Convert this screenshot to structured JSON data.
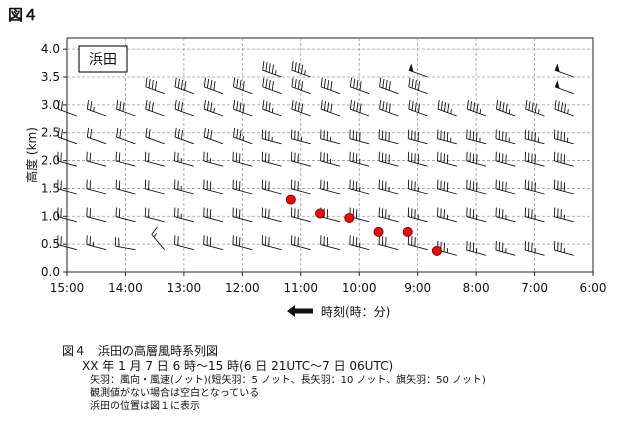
{
  "figure_label": "図４",
  "station_label": "浜田",
  "caption": {
    "line1": "図４　浜田の高層風時系列図",
    "line2": "XX 年 1 月 7 日 6 時〜15 時(6 日 21UTC〜7 日 06UTC)",
    "line3": "矢羽：風向・風速(ノット)(短矢羽：5 ノット、長矢羽：10 ノット、旗矢羽：50 ノット)",
    "line4": "観測値がない場合は空白となっている",
    "line5": "浜田の位置は図１に表示"
  },
  "chart_data": {
    "type": "wind-barb time-height",
    "xlabel": "時刻(時：分)",
    "ylabel": "高度 (km)",
    "x_ticks": [
      "15:00",
      "14:00",
      "13:00",
      "12:00",
      "11:00",
      "10:00",
      "9:00",
      "8:00",
      "7:00",
      "6:00"
    ],
    "x_hours": [
      15,
      14,
      13,
      12,
      11,
      10,
      9,
      8,
      7,
      6
    ],
    "x_direction": "reversed (time increases to the left)",
    "ylim": [
      0,
      4.2
    ],
    "y_ticks": [
      0,
      0.5,
      1.0,
      1.5,
      2.0,
      2.5,
      3.0,
      3.5,
      4.0
    ],
    "grid": true,
    "colors": {
      "marker": "#e01010",
      "barb": "#111111",
      "grid": "#9a9a9a"
    },
    "markers": [
      {
        "time": "11:10",
        "x": 11.17,
        "y": 1.3
      },
      {
        "time": "10:40",
        "x": 10.67,
        "y": 1.05
      },
      {
        "time": "10:10",
        "x": 10.17,
        "y": 0.97
      },
      {
        "time": "9:40",
        "x": 9.67,
        "y": 0.72
      },
      {
        "time": "9:10",
        "x": 9.17,
        "y": 0.72
      },
      {
        "time": "8:40",
        "x": 8.67,
        "y": 0.38
      }
    ],
    "barb_columns": [
      {
        "x": 14.83,
        "levels": [
          [
            0.4,
            285,
            20
          ],
          [
            0.9,
            285,
            20
          ],
          [
            1.4,
            285,
            20
          ],
          [
            1.9,
            285,
            20
          ],
          [
            2.3,
            290,
            20
          ],
          [
            2.8,
            290,
            20
          ]
        ]
      },
      {
        "x": 14.33,
        "levels": [
          [
            0.4,
            285,
            25
          ],
          [
            0.9,
            285,
            20
          ],
          [
            1.4,
            285,
            20
          ],
          [
            1.9,
            285,
            20
          ],
          [
            2.3,
            290,
            20
          ],
          [
            2.8,
            290,
            25
          ]
        ]
      },
      {
        "x": 13.83,
        "levels": [
          [
            0.4,
            280,
            20
          ],
          [
            0.9,
            285,
            20
          ],
          [
            1.4,
            285,
            20
          ],
          [
            1.9,
            285,
            20
          ],
          [
            2.3,
            290,
            20
          ],
          [
            2.8,
            290,
            30
          ]
        ]
      },
      {
        "x": 13.33,
        "levels": [
          [
            0.4,
            320,
            15
          ],
          [
            0.9,
            285,
            20
          ],
          [
            1.4,
            285,
            20
          ],
          [
            1.9,
            285,
            20
          ],
          [
            2.3,
            290,
            20
          ],
          [
            2.8,
            290,
            30
          ],
          [
            3.2,
            290,
            40
          ]
        ]
      },
      {
        "x": 12.83,
        "levels": [
          [
            0.4,
            285,
            20
          ],
          [
            0.9,
            285,
            25
          ],
          [
            1.4,
            285,
            25
          ],
          [
            1.9,
            285,
            25
          ],
          [
            2.3,
            290,
            30
          ],
          [
            2.8,
            290,
            30
          ],
          [
            3.2,
            290,
            40
          ]
        ]
      },
      {
        "x": 12.33,
        "levels": [
          [
            0.4,
            285,
            30
          ],
          [
            0.9,
            285,
            30
          ],
          [
            1.4,
            285,
            30
          ],
          [
            1.9,
            285,
            25
          ],
          [
            2.3,
            290,
            30
          ],
          [
            2.8,
            290,
            35
          ],
          [
            3.2,
            290,
            40
          ]
        ]
      },
      {
        "x": 11.83,
        "levels": [
          [
            0.4,
            285,
            30
          ],
          [
            0.9,
            285,
            30
          ],
          [
            1.4,
            285,
            30
          ],
          [
            1.9,
            285,
            30
          ],
          [
            2.3,
            290,
            35
          ],
          [
            2.8,
            290,
            40
          ],
          [
            3.2,
            290,
            40
          ]
        ]
      },
      {
        "x": 11.33,
        "levels": [
          [
            0.4,
            285,
            30
          ],
          [
            0.9,
            285,
            30
          ],
          [
            1.4,
            285,
            30
          ],
          [
            1.9,
            285,
            30
          ],
          [
            2.3,
            285,
            35
          ],
          [
            2.8,
            290,
            35
          ],
          [
            3.2,
            290,
            40
          ],
          [
            3.5,
            290,
            45
          ]
        ]
      },
      {
        "x": 10.83,
        "levels": [
          [
            0.4,
            285,
            30
          ],
          [
            0.9,
            285,
            30
          ],
          [
            1.4,
            285,
            30
          ],
          [
            1.9,
            285,
            30
          ],
          [
            2.3,
            285,
            35
          ],
          [
            2.8,
            290,
            40
          ],
          [
            3.2,
            290,
            40
          ],
          [
            3.5,
            290,
            45
          ]
        ]
      },
      {
        "x": 10.33,
        "levels": [
          [
            0.4,
            285,
            30
          ],
          [
            0.9,
            285,
            30
          ],
          [
            1.4,
            285,
            30
          ],
          [
            1.9,
            285,
            35
          ],
          [
            2.3,
            285,
            35
          ],
          [
            2.8,
            290,
            40
          ],
          [
            3.2,
            290,
            40
          ]
        ]
      },
      {
        "x": 9.83,
        "levels": [
          [
            0.4,
            285,
            35
          ],
          [
            0.9,
            285,
            30
          ],
          [
            1.4,
            285,
            35
          ],
          [
            1.9,
            285,
            35
          ],
          [
            2.3,
            285,
            40
          ],
          [
            2.8,
            290,
            40
          ],
          [
            3.2,
            290,
            40
          ]
        ]
      },
      {
        "x": 9.33,
        "levels": [
          [
            0.4,
            285,
            30
          ],
          [
            0.9,
            285,
            35
          ],
          [
            1.4,
            285,
            35
          ],
          [
            1.9,
            285,
            40
          ],
          [
            2.3,
            285,
            40
          ],
          [
            2.8,
            290,
            40
          ],
          [
            3.2,
            290,
            40
          ]
        ]
      },
      {
        "x": 8.83,
        "levels": [
          [
            0.4,
            285,
            30
          ],
          [
            0.9,
            285,
            35
          ],
          [
            1.4,
            285,
            35
          ],
          [
            1.9,
            285,
            40
          ],
          [
            2.3,
            285,
            40
          ],
          [
            2.8,
            290,
            40
          ],
          [
            3.2,
            290,
            40
          ],
          [
            3.5,
            290,
            50
          ]
        ]
      },
      {
        "x": 8.33,
        "levels": [
          [
            0.3,
            285,
            35
          ],
          [
            0.9,
            285,
            35
          ],
          [
            1.4,
            285,
            40
          ],
          [
            1.9,
            285,
            40
          ],
          [
            2.3,
            285,
            45
          ],
          [
            2.8,
            290,
            45
          ]
        ]
      },
      {
        "x": 7.83,
        "levels": [
          [
            0.3,
            285,
            35
          ],
          [
            0.9,
            285,
            35
          ],
          [
            1.4,
            285,
            40
          ],
          [
            1.9,
            285,
            40
          ],
          [
            2.3,
            285,
            45
          ],
          [
            2.8,
            290,
            45
          ]
        ]
      },
      {
        "x": 7.33,
        "levels": [
          [
            0.3,
            285,
            35
          ],
          [
            0.9,
            285,
            35
          ],
          [
            1.4,
            285,
            40
          ],
          [
            1.9,
            285,
            40
          ],
          [
            2.3,
            285,
            45
          ],
          [
            2.8,
            290,
            45
          ]
        ]
      },
      {
        "x": 6.83,
        "levels": [
          [
            0.3,
            285,
            35
          ],
          [
            0.9,
            285,
            35
          ],
          [
            1.4,
            285,
            40
          ],
          [
            1.9,
            285,
            40
          ],
          [
            2.3,
            285,
            45
          ],
          [
            2.8,
            290,
            45
          ]
        ]
      },
      {
        "x": 6.33,
        "levels": [
          [
            0.3,
            285,
            35
          ],
          [
            0.9,
            285,
            35
          ],
          [
            1.4,
            285,
            40
          ],
          [
            1.9,
            285,
            40
          ],
          [
            2.3,
            285,
            45
          ],
          [
            2.8,
            290,
            45
          ],
          [
            3.2,
            290,
            50
          ],
          [
            3.5,
            290,
            50
          ]
        ]
      }
    ]
  }
}
